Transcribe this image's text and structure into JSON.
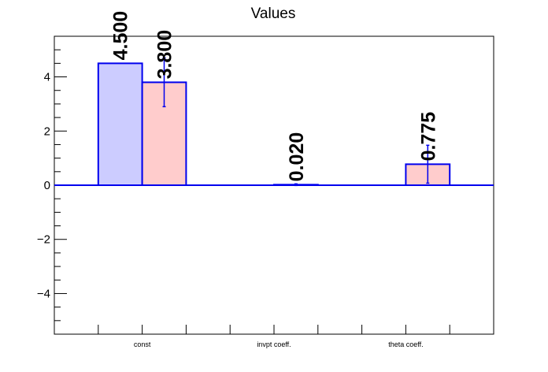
{
  "chart_data": {
    "type": "bar",
    "title": "Values",
    "categories": [
      "const",
      "invpt coeff.",
      "theta coeff."
    ],
    "series": [
      {
        "values": [
          4.5,
          null,
          null
        ],
        "value_labels": [
          "4.500",
          "",
          ""
        ],
        "fill": "#ccccff",
        "stroke": "#0000ee"
      },
      {
        "values": [
          3.8,
          0.02,
          0.775
        ],
        "value_labels": [
          "3.800",
          "0.020",
          "0.775"
        ],
        "errors": [
          0.9,
          0.03,
          0.7
        ],
        "fill": "#ffcccc",
        "stroke": "#0000ee"
      }
    ],
    "ylim": [
      -5.5,
      5.5
    ],
    "yticks": [
      -4,
      -2,
      0,
      2,
      4
    ],
    "ytick_labels": [
      "−4",
      "−2",
      "0",
      "2",
      "4"
    ],
    "zero_line_color": "#0000ee",
    "xlabel": "",
    "ylabel": "",
    "grid": false,
    "legend": "none"
  }
}
